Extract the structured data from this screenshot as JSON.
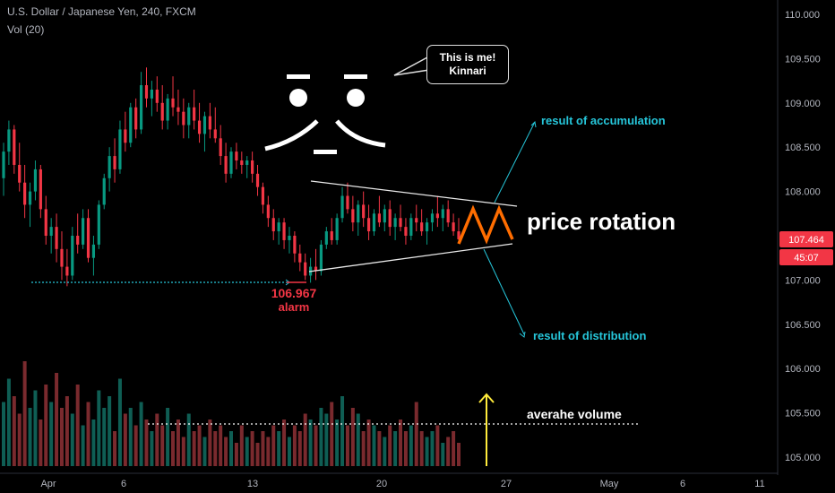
{
  "header": {
    "symbol": "U.S. Dollar / Japanese Yen, 240, FXCM",
    "indicator": "Vol (20)"
  },
  "bubble": {
    "line1": "This is me!",
    "line2": "Kinnari"
  },
  "face_text": "¯\\_¯",
  "chart_data": {
    "type": "candlestick",
    "y_axis": {
      "ticks": [
        "110.000",
        "109.500",
        "109.000",
        "108.500",
        "108.000",
        "107.500",
        "107.000",
        "106.500",
        "106.000",
        "105.500",
        "105.000"
      ],
      "range": [
        104.95,
        110.1
      ]
    },
    "x_axis": {
      "ticks": [
        "Apr",
        "6",
        "13",
        "20",
        "27",
        "May",
        "6",
        "11"
      ]
    },
    "price_label": {
      "value": "107.464",
      "countdown": "45:07",
      "color": "#f23645"
    },
    "annotations": {
      "low_price": "106.967",
      "low_note": "alarm",
      "accumulation": "result of accumulation",
      "distribution": "result of distribution",
      "rotation": "price rotation",
      "avg_volume": "averahe volume"
    },
    "colors": {
      "up": "#089981",
      "down": "#f23645",
      "cyan": "#26c6da",
      "orange": "#ff6d00",
      "yellow": "#ffeb3b"
    },
    "candles": [
      [
        108.15,
        108.55,
        107.95,
        108.45
      ],
      [
        108.45,
        108.8,
        108.3,
        108.7
      ],
      [
        108.7,
        108.75,
        108.2,
        108.3
      ],
      [
        108.3,
        108.55,
        108.0,
        108.1
      ],
      [
        108.1,
        108.3,
        107.7,
        107.85
      ],
      [
        107.85,
        108.1,
        107.6,
        108.0
      ],
      [
        108.0,
        108.35,
        107.9,
        108.25
      ],
      [
        108.25,
        108.3,
        107.7,
        107.8
      ],
      [
        107.8,
        107.95,
        107.4,
        107.5
      ],
      [
        107.5,
        107.7,
        107.3,
        107.6
      ],
      [
        107.6,
        107.75,
        107.2,
        107.35
      ],
      [
        107.35,
        107.55,
        107.0,
        107.15
      ],
      [
        107.15,
        107.35,
        106.93,
        107.05
      ],
      [
        107.05,
        107.6,
        107.0,
        107.5
      ],
      [
        107.5,
        107.75,
        107.3,
        107.4
      ],
      [
        107.4,
        107.8,
        107.35,
        107.7
      ],
      [
        107.7,
        107.8,
        107.2,
        107.25
      ],
      [
        107.25,
        107.5,
        107.05,
        107.4
      ],
      [
        107.4,
        107.9,
        107.35,
        107.85
      ],
      [
        107.85,
        108.2,
        107.8,
        108.15
      ],
      [
        108.15,
        108.5,
        108.0,
        108.4
      ],
      [
        108.4,
        108.6,
        108.1,
        108.25
      ],
      [
        108.25,
        108.8,
        108.2,
        108.7
      ],
      [
        108.7,
        108.9,
        108.45,
        108.55
      ],
      [
        108.55,
        109.0,
        108.5,
        108.95
      ],
      [
        108.95,
        109.05,
        108.6,
        108.7
      ],
      [
        108.7,
        109.35,
        108.65,
        109.2
      ],
      [
        109.2,
        109.4,
        108.95,
        109.05
      ],
      [
        109.05,
        109.25,
        108.85,
        109.15
      ],
      [
        109.15,
        109.3,
        108.9,
        109.0
      ],
      [
        109.0,
        109.2,
        108.7,
        108.8
      ],
      [
        108.8,
        109.1,
        108.7,
        109.05
      ],
      [
        109.05,
        109.3,
        108.85,
        108.95
      ],
      [
        108.95,
        109.15,
        108.75,
        108.9
      ],
      [
        108.9,
        109.05,
        108.6,
        108.75
      ],
      [
        108.75,
        109.0,
        108.6,
        108.95
      ],
      [
        108.95,
        109.15,
        108.7,
        108.8
      ],
      [
        108.8,
        109.0,
        108.55,
        108.65
      ],
      [
        108.65,
        108.9,
        108.45,
        108.85
      ],
      [
        108.85,
        109.0,
        108.6,
        108.7
      ],
      [
        108.7,
        108.95,
        108.55,
        108.6
      ],
      [
        108.6,
        108.75,
        108.3,
        108.4
      ],
      [
        108.4,
        108.55,
        108.1,
        108.2
      ],
      [
        108.2,
        108.5,
        108.15,
        108.45
      ],
      [
        108.45,
        108.55,
        108.25,
        108.35
      ],
      [
        108.35,
        108.45,
        108.2,
        108.3
      ],
      [
        108.3,
        108.4,
        108.15,
        108.35
      ],
      [
        108.35,
        108.45,
        108.1,
        108.2
      ],
      [
        108.2,
        108.3,
        107.95,
        108.05
      ],
      [
        108.05,
        108.1,
        107.75,
        107.85
      ],
      [
        107.85,
        107.95,
        107.6,
        107.7
      ],
      [
        107.7,
        107.8,
        107.45,
        107.55
      ],
      [
        107.55,
        107.7,
        107.4,
        107.65
      ],
      [
        107.65,
        107.7,
        107.35,
        107.45
      ],
      [
        107.45,
        107.6,
        107.3,
        107.5
      ],
      [
        107.5,
        107.55,
        107.2,
        107.3
      ],
      [
        107.3,
        107.4,
        107.1,
        107.2
      ],
      [
        107.2,
        107.3,
        107.0,
        107.05
      ],
      [
        107.05,
        107.25,
        106.97,
        107.15
      ],
      [
        107.15,
        107.35,
        107.0,
        107.1
      ],
      [
        107.1,
        107.45,
        107.05,
        107.4
      ],
      [
        107.4,
        107.6,
        107.35,
        107.55
      ],
      [
        107.55,
        107.7,
        107.4,
        107.45
      ],
      [
        107.45,
        107.75,
        107.4,
        107.7
      ],
      [
        107.7,
        108.05,
        107.65,
        107.95
      ],
      [
        107.95,
        108.1,
        107.75,
        107.8
      ],
      [
        107.8,
        107.95,
        107.55,
        107.65
      ],
      [
        107.65,
        107.9,
        107.5,
        107.85
      ],
      [
        107.85,
        108.0,
        107.6,
        107.7
      ],
      [
        107.7,
        107.85,
        107.45,
        107.55
      ],
      [
        107.55,
        107.8,
        107.5,
        107.75
      ],
      [
        107.75,
        107.95,
        107.6,
        107.65
      ],
      [
        107.65,
        107.85,
        107.55,
        107.8
      ],
      [
        107.8,
        107.9,
        107.5,
        107.6
      ],
      [
        107.6,
        107.75,
        107.45,
        107.7
      ],
      [
        107.7,
        107.85,
        107.55,
        107.6
      ],
      [
        107.6,
        107.7,
        107.4,
        107.5
      ],
      [
        107.5,
        107.75,
        107.45,
        107.7
      ],
      [
        107.7,
        107.85,
        107.55,
        107.65
      ],
      [
        107.65,
        107.8,
        107.5,
        107.55
      ],
      [
        107.55,
        107.7,
        107.4,
        107.65
      ],
      [
        107.65,
        107.8,
        107.55,
        107.75
      ],
      [
        107.75,
        107.95,
        107.6,
        107.7
      ],
      [
        107.7,
        107.85,
        107.55,
        107.8
      ],
      [
        107.8,
        107.9,
        107.6,
        107.65
      ],
      [
        107.65,
        107.75,
        107.5,
        107.55
      ],
      [
        107.55,
        107.7,
        107.45,
        107.46
      ]
    ],
    "volume": [
      0.55,
      0.75,
      0.6,
      0.45,
      0.9,
      0.5,
      0.65,
      0.4,
      0.7,
      0.55,
      0.8,
      0.5,
      0.6,
      0.45,
      0.7,
      0.35,
      0.55,
      0.4,
      0.65,
      0.5,
      0.6,
      0.3,
      0.75,
      0.45,
      0.5,
      0.35,
      0.55,
      0.4,
      0.3,
      0.45,
      0.35,
      0.5,
      0.3,
      0.4,
      0.25,
      0.45,
      0.3,
      0.35,
      0.25,
      0.4,
      0.3,
      0.35,
      0.25,
      0.3,
      0.2,
      0.35,
      0.25,
      0.3,
      0.2,
      0.3,
      0.25,
      0.35,
      0.3,
      0.4,
      0.25,
      0.35,
      0.3,
      0.45,
      0.4,
      0.35,
      0.5,
      0.45,
      0.55,
      0.4,
      0.6,
      0.35,
      0.5,
      0.45,
      0.3,
      0.4,
      0.35,
      0.3,
      0.25,
      0.35,
      0.3,
      0.4,
      0.3,
      0.35,
      0.55,
      0.3,
      0.25,
      0.3,
      0.35,
      0.2,
      0.25,
      0.3,
      0.2
    ]
  }
}
